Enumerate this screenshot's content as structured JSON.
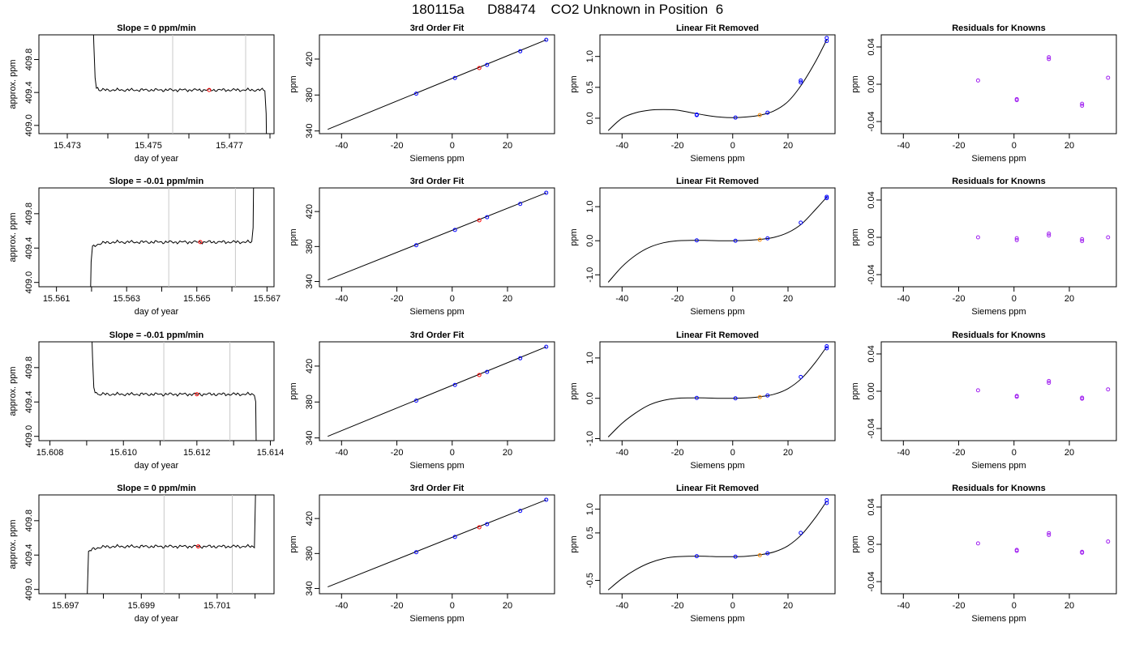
{
  "figure": {
    "title": "180115a      D88474    CO2 Unknown in Position  6"
  },
  "colors": {
    "trace": "#000000",
    "marker_window": "#c8c8c8",
    "known_points": "#0000ff",
    "unknown_point": "#ff0000",
    "residual_points": "#a020f0",
    "unknown_fit_point": "#ff8c00"
  },
  "chart_data": [
    {
      "row": 0,
      "col": 0,
      "type": "line",
      "title": "Slope =  0  ppm/min",
      "xlabel": "day of year",
      "ylabel": "approx. ppm",
      "xlim": [
        15.4723,
        15.4781
      ],
      "ylim": [
        408.9,
        410.1
      ],
      "xticks": [
        15.473,
        15.474,
        15.475,
        15.476,
        15.477,
        15.478
      ],
      "xtick_labels": [
        "15.473",
        "",
        "15.475",
        "",
        "15.477",
        ""
      ],
      "yticks": [
        409.0,
        409.4,
        409.8
      ],
      "ytick_labels": [
        "409.0",
        "409.4",
        "409.8"
      ],
      "vlines": [
        15.4756,
        15.4774
      ],
      "trace": {
        "shape": "down_flat_down",
        "start": 15.4737,
        "level": 409.43,
        "end": 15.4779
      },
      "highlight": {
        "x": 15.4765,
        "y": 409.43
      }
    },
    {
      "row": 0,
      "col": 1,
      "type": "scatter",
      "title": "3rd Order Fit",
      "xlabel": "Siemens ppm",
      "ylabel": "ppm",
      "xlim": [
        -48,
        37
      ],
      "ylim": [
        337,
        447
      ],
      "xticks": [
        -40,
        -20,
        0,
        20
      ],
      "yticks": [
        340,
        380,
        420
      ],
      "line": {
        "x": [
          -45,
          34
        ],
        "y": [
          341.8,
          441.4
        ]
      },
      "points": [
        {
          "x": -13,
          "y": 381.5,
          "kind": "known"
        },
        {
          "x": 1,
          "y": 399.0,
          "kind": "known"
        },
        {
          "x": 9.8,
          "y": 410.0,
          "kind": "unknown"
        },
        {
          "x": 12.6,
          "y": 413.5,
          "kind": "known"
        },
        {
          "x": 24.6,
          "y": 428.7,
          "kind": "known"
        },
        {
          "x": 34,
          "y": 441.5,
          "kind": "known"
        }
      ]
    },
    {
      "row": 0,
      "col": 2,
      "type": "scatter",
      "title": "Linear Fit Removed",
      "xlabel": "Siemens ppm",
      "ylabel": "ppm",
      "xlim": [
        -48,
        37
      ],
      "ylim": [
        -0.25,
        1.35
      ],
      "xticks": [
        -40,
        -20,
        0,
        20
      ],
      "yticks": [
        0.0,
        0.5,
        1.0
      ],
      "ytick_labels": [
        "0.0",
        "0.5",
        "1.0"
      ],
      "curve": {
        "x": [
          -45,
          -40,
          -35,
          -30,
          -25,
          -20,
          -15,
          -10,
          -5,
          0,
          5,
          10,
          15,
          20,
          25,
          30,
          34
        ],
        "y": [
          -0.2,
          0.0,
          0.09,
          0.13,
          0.14,
          0.13,
          0.09,
          0.05,
          0.02,
          0.01,
          0.02,
          0.05,
          0.12,
          0.27,
          0.55,
          0.92,
          1.27
        ]
      },
      "points": [
        {
          "x": -13,
          "y": 0.05,
          "kind": "known"
        },
        {
          "x": -13,
          "y": 0.06,
          "kind": "known"
        },
        {
          "x": 1,
          "y": 0.01,
          "kind": "known"
        },
        {
          "x": 9.8,
          "y": 0.05,
          "kind": "unknown"
        },
        {
          "x": 12.6,
          "y": 0.09,
          "kind": "known"
        },
        {
          "x": 24.6,
          "y": 0.58,
          "kind": "known"
        },
        {
          "x": 24.6,
          "y": 0.61,
          "kind": "known"
        },
        {
          "x": 34,
          "y": 1.25,
          "kind": "known"
        },
        {
          "x": 34,
          "y": 1.3,
          "kind": "known"
        }
      ]
    },
    {
      "row": 0,
      "col": 3,
      "type": "scatter",
      "title": "Residuals for Knowns",
      "xlabel": "Siemens ppm",
      "ylabel": "ppm",
      "xlim": [
        -48,
        37
      ],
      "ylim": [
        -0.053,
        0.053
      ],
      "xticks": [
        -40,
        -20,
        0,
        20
      ],
      "yticks": [
        -0.04,
        0.0,
        0.04
      ],
      "ytick_labels": [
        "-0.04",
        "0.00",
        "0.04"
      ],
      "points": [
        {
          "x": -13,
          "y": 0.004
        },
        {
          "x": 1,
          "y": -0.016
        },
        {
          "x": 1,
          "y": -0.017
        },
        {
          "x": 12.6,
          "y": 0.027
        },
        {
          "x": 12.6,
          "y": 0.029
        },
        {
          "x": 24.6,
          "y": -0.021
        },
        {
          "x": 24.6,
          "y": -0.023
        },
        {
          "x": 34,
          "y": 0.007
        }
      ]
    },
    {
      "row": 1,
      "col": 0,
      "type": "line",
      "title": "Slope =  -0.01  ppm/min",
      "xlabel": "day of year",
      "ylabel": "approx. ppm",
      "xlim": [
        15.5605,
        15.5672
      ],
      "ylim": [
        408.95,
        410.1
      ],
      "xticks": [
        15.561,
        15.562,
        15.563,
        15.564,
        15.565,
        15.566,
        15.567
      ],
      "xtick_labels": [
        "15.561",
        "",
        "15.563",
        "",
        "15.565",
        "",
        "15.567"
      ],
      "yticks": [
        409.0,
        409.4,
        409.8
      ],
      "ytick_labels": [
        "409.0",
        "409.4",
        "409.8"
      ],
      "vlines": [
        15.5642,
        15.5661
      ],
      "trace": {
        "shape": "up_flat_up",
        "start": 15.562,
        "level": 409.47,
        "end": 15.5666
      },
      "highlight": {
        "x": 15.5651,
        "y": 409.47
      }
    },
    {
      "row": 1,
      "col": 1,
      "type": "scatter",
      "title": "3rd Order Fit",
      "xlabel": "Siemens ppm",
      "ylabel": "ppm",
      "xlim": [
        -48,
        37
      ],
      "ylim": [
        334,
        447
      ],
      "xticks": [
        -40,
        -20,
        0,
        20
      ],
      "yticks": [
        340,
        380,
        420
      ],
      "line": {
        "x": [
          -45,
          34
        ],
        "y": [
          341.8,
          441.4
        ]
      },
      "points": [
        {
          "x": -13,
          "y": 381.5,
          "kind": "known"
        },
        {
          "x": 1,
          "y": 399.0,
          "kind": "known"
        },
        {
          "x": 9.8,
          "y": 410.0,
          "kind": "unknown"
        },
        {
          "x": 12.6,
          "y": 413.5,
          "kind": "known"
        },
        {
          "x": 24.6,
          "y": 428.7,
          "kind": "known"
        },
        {
          "x": 34,
          "y": 441.5,
          "kind": "known"
        }
      ]
    },
    {
      "row": 1,
      "col": 2,
      "type": "scatter",
      "title": "Linear Fit Removed",
      "xlabel": "Siemens ppm",
      "ylabel": "ppm",
      "xlim": [
        -48,
        37
      ],
      "ylim": [
        -1.35,
        1.55
      ],
      "xticks": [
        -40,
        -20,
        0,
        20
      ],
      "yticks": [
        -1.0,
        0.0,
        1.0
      ],
      "ytick_labels": [
        "-1.0",
        "0.0",
        "1.0"
      ],
      "curve": {
        "x": [
          -45,
          -40,
          -35,
          -30,
          -25,
          -20,
          -15,
          -10,
          -5,
          0,
          5,
          10,
          15,
          20,
          25,
          30,
          34
        ],
        "y": [
          -1.22,
          -0.76,
          -0.42,
          -0.19,
          -0.06,
          0.0,
          0.01,
          0.01,
          0.0,
          0.0,
          0.01,
          0.04,
          0.1,
          0.24,
          0.5,
          0.92,
          1.28
        ]
      },
      "points": [
        {
          "x": -13,
          "y": 0.01,
          "kind": "known"
        },
        {
          "x": 1,
          "y": 0.0,
          "kind": "known"
        },
        {
          "x": 9.8,
          "y": 0.03,
          "kind": "unknown"
        },
        {
          "x": 12.6,
          "y": 0.07,
          "kind": "known"
        },
        {
          "x": 24.6,
          "y": 0.53,
          "kind": "known"
        },
        {
          "x": 34,
          "y": 1.25,
          "kind": "known"
        },
        {
          "x": 34,
          "y": 1.29,
          "kind": "known"
        }
      ]
    },
    {
      "row": 1,
      "col": 3,
      "type": "scatter",
      "title": "Residuals for Knowns",
      "xlabel": "Siemens ppm",
      "ylabel": "ppm",
      "xlim": [
        -48,
        37
      ],
      "ylim": [
        -0.053,
        0.053
      ],
      "xticks": [
        -40,
        -20,
        0,
        20
      ],
      "yticks": [
        -0.04,
        0.0,
        0.04
      ],
      "ytick_labels": [
        "-0.04",
        "0.00",
        "0.04"
      ],
      "points": [
        {
          "x": -13,
          "y": 0.0
        },
        {
          "x": 1,
          "y": -0.001
        },
        {
          "x": 1,
          "y": -0.003
        },
        {
          "x": 12.6,
          "y": 0.002
        },
        {
          "x": 12.6,
          "y": 0.004
        },
        {
          "x": 24.6,
          "y": -0.002
        },
        {
          "x": 24.6,
          "y": -0.004
        },
        {
          "x": 34,
          "y": 0.0
        }
      ]
    },
    {
      "row": 2,
      "col": 0,
      "type": "line",
      "title": "Slope =  -0.01  ppm/min",
      "xlabel": "day of year",
      "ylabel": "approx. ppm",
      "xlim": [
        15.6077,
        15.6141
      ],
      "ylim": [
        408.95,
        410.1
      ],
      "xticks": [
        15.608,
        15.609,
        15.61,
        15.611,
        15.612,
        15.613,
        15.614
      ],
      "xtick_labels": [
        "15.608",
        "",
        "15.610",
        "",
        "15.612",
        "",
        "15.614"
      ],
      "yticks": [
        409.0,
        409.4,
        409.8
      ],
      "ytick_labels": [
        "409.0",
        "409.4",
        "409.8"
      ],
      "vlines": [
        15.6111,
        15.6129
      ],
      "trace": {
        "shape": "down_flat_down",
        "start": 15.6092,
        "level": 409.49,
        "end": 15.6136
      },
      "highlight": {
        "x": 15.612,
        "y": 409.49
      }
    },
    {
      "row": 2,
      "col": 1,
      "type": "scatter",
      "title": "3rd Order Fit",
      "xlabel": "Siemens ppm",
      "ylabel": "ppm",
      "xlim": [
        -48,
        37
      ],
      "ylim": [
        337,
        447
      ],
      "xticks": [
        -40,
        -20,
        0,
        20
      ],
      "yticks": [
        340,
        380,
        420
      ],
      "line": {
        "x": [
          -45,
          34
        ],
        "y": [
          341.8,
          441.4
        ]
      },
      "points": [
        {
          "x": -13,
          "y": 381.5,
          "kind": "known"
        },
        {
          "x": 1,
          "y": 399.0,
          "kind": "known"
        },
        {
          "x": 9.8,
          "y": 410.0,
          "kind": "unknown"
        },
        {
          "x": 12.6,
          "y": 413.5,
          "kind": "known"
        },
        {
          "x": 24.6,
          "y": 428.7,
          "kind": "known"
        },
        {
          "x": 34,
          "y": 441.5,
          "kind": "known"
        }
      ]
    },
    {
      "row": 2,
      "col": 2,
      "type": "scatter",
      "title": "Linear Fit Removed",
      "xlabel": "Siemens ppm",
      "ylabel": "ppm",
      "xlim": [
        -48,
        37
      ],
      "ylim": [
        -1.05,
        1.4
      ],
      "xticks": [
        -40,
        -20,
        0,
        20
      ],
      "yticks": [
        -1.0,
        0.0,
        1.0
      ],
      "ytick_labels": [
        "-1.0",
        "0.0",
        "1.0"
      ],
      "curve": {
        "x": [
          -45,
          -40,
          -35,
          -30,
          -25,
          -20,
          -15,
          -10,
          -5,
          0,
          5,
          10,
          15,
          20,
          25,
          30,
          34
        ],
        "y": [
          -0.96,
          -0.62,
          -0.36,
          -0.16,
          -0.05,
          0.0,
          0.01,
          0.01,
          0.0,
          0.0,
          0.01,
          0.04,
          0.1,
          0.24,
          0.5,
          0.9,
          1.28
        ]
      },
      "points": [
        {
          "x": -13,
          "y": 0.01,
          "kind": "known"
        },
        {
          "x": 1,
          "y": 0.0,
          "kind": "known"
        },
        {
          "x": 9.8,
          "y": 0.03,
          "kind": "unknown"
        },
        {
          "x": 12.6,
          "y": 0.07,
          "kind": "known"
        },
        {
          "x": 24.6,
          "y": 0.53,
          "kind": "known"
        },
        {
          "x": 34,
          "y": 1.24,
          "kind": "known"
        },
        {
          "x": 34,
          "y": 1.29,
          "kind": "known"
        }
      ]
    },
    {
      "row": 2,
      "col": 3,
      "type": "scatter",
      "title": "Residuals for Knowns",
      "xlabel": "Siemens ppm",
      "ylabel": "ppm",
      "xlim": [
        -48,
        37
      ],
      "ylim": [
        -0.053,
        0.053
      ],
      "xticks": [
        -40,
        -20,
        0,
        20
      ],
      "yticks": [
        -0.04,
        0.0,
        0.04
      ],
      "ytick_labels": [
        "-0.04",
        "0.00",
        "0.04"
      ],
      "points": [
        {
          "x": -13,
          "y": 0.001
        },
        {
          "x": 1,
          "y": -0.005
        },
        {
          "x": 1,
          "y": -0.006
        },
        {
          "x": 12.6,
          "y": 0.009
        },
        {
          "x": 12.6,
          "y": 0.011
        },
        {
          "x": 24.6,
          "y": -0.007
        },
        {
          "x": 24.6,
          "y": -0.008
        },
        {
          "x": 34,
          "y": 0.002
        }
      ]
    },
    {
      "row": 3,
      "col": 0,
      "type": "line",
      "title": "Slope =  0  ppm/min",
      "xlabel": "day of year",
      "ylabel": "approx. ppm",
      "xlim": [
        15.6963,
        15.7025
      ],
      "ylim": [
        408.95,
        410.1
      ],
      "xticks": [
        15.697,
        15.698,
        15.699,
        15.7,
        15.701,
        15.702
      ],
      "xtick_labels": [
        "15.697",
        "",
        "15.699",
        "",
        "15.701",
        ""
      ],
      "yticks": [
        409.0,
        409.4,
        409.8
      ],
      "ytick_labels": [
        "409.0",
        "409.4",
        "409.8"
      ],
      "vlines": [
        15.6996,
        15.7014
      ],
      "trace": {
        "shape": "up_flat_up",
        "start": 15.6976,
        "level": 409.5,
        "end": 15.702
      },
      "highlight": {
        "x": 15.7005,
        "y": 409.5
      }
    },
    {
      "row": 3,
      "col": 1,
      "type": "scatter",
      "title": "3rd Order Fit",
      "xlabel": "Siemens ppm",
      "ylabel": "ppm",
      "xlim": [
        -48,
        37
      ],
      "ylim": [
        334,
        447
      ],
      "xticks": [
        -40,
        -20,
        0,
        20
      ],
      "yticks": [
        340,
        380,
        420
      ],
      "line": {
        "x": [
          -45,
          34
        ],
        "y": [
          341.8,
          441.4
        ]
      },
      "points": [
        {
          "x": -13,
          "y": 381.5,
          "kind": "known"
        },
        {
          "x": 1,
          "y": 399.0,
          "kind": "known"
        },
        {
          "x": 9.8,
          "y": 410.0,
          "kind": "unknown"
        },
        {
          "x": 12.6,
          "y": 413.5,
          "kind": "known"
        },
        {
          "x": 24.6,
          "y": 428.7,
          "kind": "known"
        },
        {
          "x": 34,
          "y": 441.5,
          "kind": "known"
        }
      ]
    },
    {
      "row": 3,
      "col": 2,
      "type": "scatter",
      "title": "Linear Fit Removed",
      "xlabel": "Siemens ppm",
      "ylabel": "ppm",
      "xlim": [
        -48,
        37
      ],
      "ylim": [
        -0.78,
        1.3
      ],
      "xticks": [
        -40,
        -20,
        0,
        20
      ],
      "yticks": [
        -0.5,
        0.5,
        1.0
      ],
      "ytick_labels": [
        "-0.5",
        "0.5",
        "1.0"
      ],
      "curve": {
        "x": [
          -45,
          -40,
          -35,
          -30,
          -25,
          -20,
          -15,
          -10,
          -5,
          0,
          5,
          10,
          15,
          20,
          25,
          30,
          34
        ],
        "y": [
          -0.7,
          -0.46,
          -0.27,
          -0.13,
          -0.04,
          0.0,
          0.01,
          0.01,
          0.0,
          0.0,
          0.01,
          0.04,
          0.1,
          0.23,
          0.47,
          0.83,
          1.17
        ]
      },
      "points": [
        {
          "x": -13,
          "y": 0.01,
          "kind": "known"
        },
        {
          "x": 1,
          "y": 0.0,
          "kind": "known"
        },
        {
          "x": 9.8,
          "y": 0.03,
          "kind": "unknown"
        },
        {
          "x": 12.6,
          "y": 0.07,
          "kind": "known"
        },
        {
          "x": 24.6,
          "y": 0.5,
          "kind": "known"
        },
        {
          "x": 34,
          "y": 1.13,
          "kind": "known"
        },
        {
          "x": 34,
          "y": 1.19,
          "kind": "known"
        }
      ]
    },
    {
      "row": 3,
      "col": 3,
      "type": "scatter",
      "title": "Residuals for Knowns",
      "xlabel": "Siemens ppm",
      "ylabel": "ppm",
      "xlim": [
        -48,
        37
      ],
      "ylim": [
        -0.053,
        0.053
      ],
      "xticks": [
        -40,
        -20,
        0,
        20
      ],
      "yticks": [
        -0.04,
        0.0,
        0.04
      ],
      "ytick_labels": [
        "-0.04",
        "0.00",
        "0.04"
      ],
      "points": [
        {
          "x": -13,
          "y": 0.001
        },
        {
          "x": 1,
          "y": -0.006
        },
        {
          "x": 1,
          "y": -0.007
        },
        {
          "x": 12.6,
          "y": 0.01
        },
        {
          "x": 12.6,
          "y": 0.012
        },
        {
          "x": 24.6,
          "y": -0.008
        },
        {
          "x": 24.6,
          "y": -0.009
        },
        {
          "x": 34,
          "y": 0.003
        }
      ]
    }
  ]
}
